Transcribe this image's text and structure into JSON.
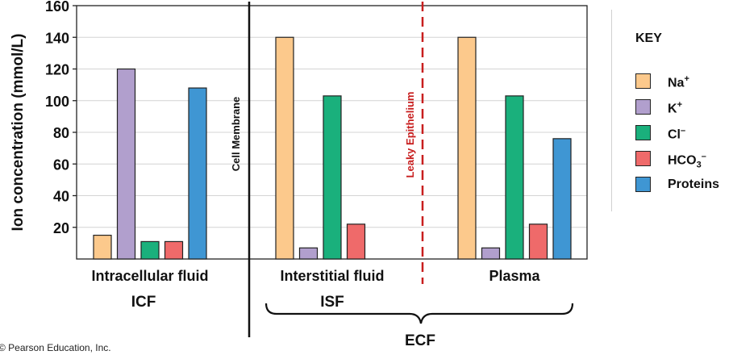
{
  "chart_data": {
    "type": "bar",
    "ylabel": "Ion concentration (mmol/L)",
    "ylim": [
      0,
      160
    ],
    "yticks": [
      20,
      40,
      60,
      80,
      100,
      120,
      140,
      160
    ],
    "series_names": [
      "Na",
      "K",
      "Cl",
      "HCO3",
      "Proteins"
    ],
    "series_colors": [
      "#fcc98c",
      "#b19fcd",
      "#1ab07c",
      "#ef6a6a",
      "#3f96d3"
    ],
    "groups": [
      {
        "label": "Intracellular fluid",
        "abbrev": "ICF",
        "values": [
          15,
          120,
          11,
          11,
          108
        ]
      },
      {
        "label": "Interstitial fluid",
        "abbrev": "ISF",
        "values": [
          140,
          7,
          103,
          22,
          null
        ]
      },
      {
        "label": "Plasma",
        "abbrev": "",
        "values": [
          140,
          7,
          103,
          22,
          76
        ]
      }
    ],
    "annotations": {
      "cell_membrane": "Cell Membrane",
      "leaky_epithelium": "Leaky Epithelium",
      "ecf": "ECF"
    },
    "grid": true
  },
  "key": {
    "title": "KEY",
    "items": [
      {
        "base": "Na",
        "sup": "+",
        "sub": "",
        "color": "#fcc98c"
      },
      {
        "base": "K",
        "sup": "+",
        "sub": "",
        "color": "#b19fcd"
      },
      {
        "base": "Cl",
        "sup": "–",
        "sub": "",
        "color": "#1ab07c"
      },
      {
        "base": "HCO",
        "sup": "–",
        "sub": "3",
        "color": "#ef6a6a"
      },
      {
        "base": "Proteins",
        "sup": "",
        "sub": "",
        "color": "#3f96d3"
      }
    ]
  },
  "footer": {
    "copyright": "© Pearson Education, Inc."
  }
}
